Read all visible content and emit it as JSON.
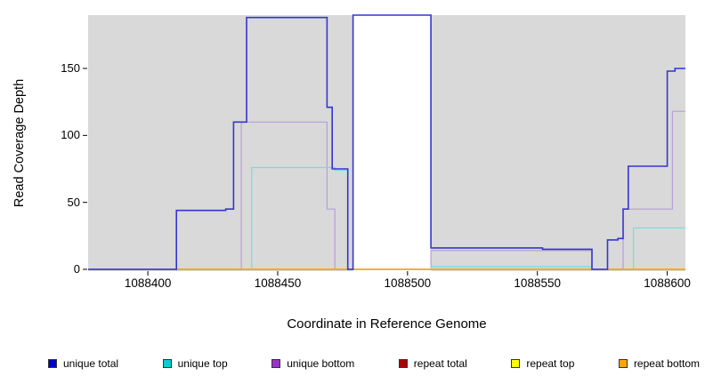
{
  "chart_data": {
    "type": "line",
    "step": true,
    "title": "",
    "xlabel": "Coordinate in Reference Genome",
    "ylabel": "Read Coverage Depth",
    "xlim": [
      1088377,
      1088607
    ],
    "ylim": [
      0,
      150
    ],
    "clip_max": 190,
    "x_ticks": [
      1088400,
      1088450,
      1088500,
      1088550,
      1088600
    ],
    "y_ticks": [
      0,
      50,
      100,
      150
    ],
    "grid": false,
    "legend_position": "bottom",
    "plot_background": "#d9d9d9",
    "unmasked_band": {
      "x_start": 1088479,
      "x_end": 1088509,
      "color": "#ffffff"
    },
    "draw_order": [
      3,
      4,
      2,
      1,
      5,
      0
    ],
    "series": [
      {
        "name": "unique total",
        "legend_color": "#0000cd",
        "line_color": "#3535cf",
        "line_width": 1.6,
        "points": [
          [
            1088377,
            0
          ],
          [
            1088411,
            44
          ],
          [
            1088430,
            45
          ],
          [
            1088433,
            110
          ],
          [
            1088438,
            188
          ],
          [
            1088469,
            121
          ],
          [
            1088471,
            75
          ],
          [
            1088477,
            0
          ],
          [
            1088479,
            190
          ],
          [
            1088509,
            16
          ],
          [
            1088552,
            15
          ],
          [
            1088571,
            0
          ],
          [
            1088577,
            22
          ],
          [
            1088581,
            23
          ],
          [
            1088583,
            45
          ],
          [
            1088585,
            77
          ],
          [
            1088600,
            148
          ],
          [
            1088603,
            150
          ]
        ]
      },
      {
        "name": "unique top",
        "legend_color": "#00ced1",
        "line_color": "#76dbde",
        "line_width": 1.2,
        "points": [
          [
            1088377,
            0
          ],
          [
            1088440,
            76
          ],
          [
            1088472,
            74
          ],
          [
            1088477,
            0
          ],
          [
            1088509,
            2
          ],
          [
            1088571,
            0
          ],
          [
            1088587,
            31
          ]
        ]
      },
      {
        "name": "unique bottom",
        "legend_color": "#9932cc",
        "line_color": "#b89ddb",
        "line_width": 1.2,
        "points": [
          [
            1088377,
            0
          ],
          [
            1088436,
            110
          ],
          [
            1088469,
            45
          ],
          [
            1088472,
            0
          ],
          [
            1088509,
            14
          ],
          [
            1088571,
            0
          ],
          [
            1088583,
            45
          ],
          [
            1088602,
            118
          ]
        ]
      },
      {
        "name": "repeat total",
        "legend_color": "#aa0000",
        "line_color": "#aa0000",
        "line_width": 1.2,
        "points": [
          [
            1088377,
            0
          ]
        ]
      },
      {
        "name": "repeat top",
        "legend_color": "#ffff00",
        "line_color": "#ffff00",
        "line_width": 1.2,
        "points": [
          [
            1088377,
            0
          ]
        ]
      },
      {
        "name": "repeat bottom",
        "legend_color": "#ffa500",
        "line_color": "#ffa500",
        "line_width": 1.2,
        "points": [
          [
            1088377,
            0
          ]
        ]
      }
    ]
  }
}
